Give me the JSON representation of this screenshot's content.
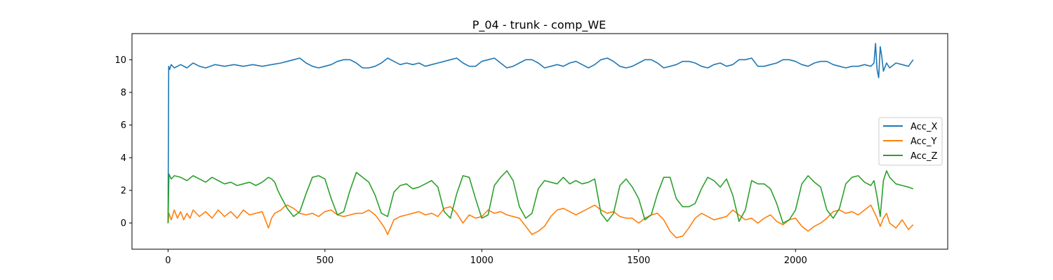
{
  "chart_data": {
    "type": "line",
    "title": "P_04 - trunk - comp_WE",
    "xlabel": "",
    "ylabel": "",
    "xlim": [
      -115,
      2485
    ],
    "ylim": [
      -1.6,
      11.6
    ],
    "x_ticks": [
      0,
      500,
      1000,
      1500,
      2000
    ],
    "y_ticks": [
      0,
      2,
      4,
      6,
      8,
      10
    ],
    "grid": false,
    "legend_position": "center-right",
    "series": [
      {
        "name": "Acc_X",
        "color": "#1f77b4",
        "x": [
          0,
          2,
          5,
          10,
          20,
          40,
          60,
          80,
          100,
          120,
          150,
          180,
          210,
          240,
          270,
          300,
          330,
          360,
          380,
          400,
          420,
          440,
          460,
          480,
          500,
          520,
          540,
          560,
          580,
          600,
          620,
          640,
          660,
          680,
          700,
          720,
          740,
          760,
          780,
          800,
          820,
          840,
          860,
          880,
          900,
          920,
          940,
          960,
          980,
          1000,
          1020,
          1040,
          1060,
          1080,
          1100,
          1120,
          1140,
          1160,
          1180,
          1200,
          1220,
          1240,
          1260,
          1280,
          1300,
          1320,
          1340,
          1360,
          1380,
          1400,
          1420,
          1440,
          1460,
          1480,
          1500,
          1520,
          1540,
          1560,
          1580,
          1600,
          1620,
          1640,
          1660,
          1680,
          1700,
          1720,
          1740,
          1760,
          1780,
          1800,
          1820,
          1840,
          1860,
          1880,
          1900,
          1920,
          1940,
          1960,
          1980,
          2000,
          2020,
          2040,
          2060,
          2080,
          2100,
          2120,
          2140,
          2160,
          2180,
          2200,
          2220,
          2240,
          2250,
          2255,
          2260,
          2265,
          2270,
          2275,
          2280,
          2290,
          2300,
          2320,
          2340,
          2360,
          2375
        ],
        "values": [
          0.0,
          9.6,
          9.4,
          9.7,
          9.5,
          9.7,
          9.5,
          9.8,
          9.6,
          9.5,
          9.7,
          9.6,
          9.7,
          9.6,
          9.7,
          9.6,
          9.7,
          9.8,
          9.9,
          10.0,
          10.1,
          9.8,
          9.6,
          9.5,
          9.6,
          9.7,
          9.9,
          10.0,
          10.0,
          9.8,
          9.5,
          9.5,
          9.6,
          9.8,
          10.1,
          9.9,
          9.7,
          9.8,
          9.7,
          9.8,
          9.6,
          9.7,
          9.8,
          9.9,
          10.0,
          10.1,
          9.8,
          9.6,
          9.6,
          9.9,
          10.0,
          10.1,
          9.8,
          9.5,
          9.6,
          9.8,
          10.0,
          10.0,
          9.8,
          9.5,
          9.6,
          9.7,
          9.6,
          9.8,
          9.9,
          9.7,
          9.5,
          9.7,
          10.0,
          10.1,
          9.9,
          9.6,
          9.5,
          9.6,
          9.8,
          10.0,
          10.0,
          9.8,
          9.5,
          9.6,
          9.7,
          9.9,
          9.9,
          9.8,
          9.6,
          9.5,
          9.7,
          9.8,
          9.6,
          9.7,
          10.0,
          10.0,
          10.1,
          9.6,
          9.6,
          9.7,
          9.8,
          10.0,
          10.0,
          9.9,
          9.7,
          9.6,
          9.8,
          9.9,
          9.9,
          9.7,
          9.6,
          9.5,
          9.6,
          9.6,
          9.7,
          9.6,
          9.8,
          11.0,
          9.4,
          8.9,
          10.8,
          10.2,
          9.3,
          9.8,
          9.5,
          9.8,
          9.7,
          9.6,
          10.0
        ]
      },
      {
        "name": "Acc_Y",
        "color": "#ff7f0e",
        "x": [
          0,
          3,
          10,
          20,
          30,
          40,
          50,
          60,
          70,
          80,
          100,
          120,
          140,
          160,
          180,
          200,
          220,
          240,
          260,
          280,
          300,
          310,
          320,
          330,
          340,
          360,
          370,
          380,
          400,
          420,
          440,
          460,
          480,
          500,
          520,
          540,
          560,
          580,
          600,
          620,
          640,
          660,
          680,
          690,
          700,
          720,
          740,
          760,
          780,
          800,
          820,
          840,
          860,
          880,
          900,
          920,
          940,
          960,
          980,
          1000,
          1020,
          1040,
          1060,
          1080,
          1100,
          1120,
          1140,
          1160,
          1180,
          1200,
          1220,
          1240,
          1260,
          1280,
          1300,
          1320,
          1340,
          1360,
          1380,
          1400,
          1420,
          1440,
          1460,
          1480,
          1500,
          1520,
          1540,
          1560,
          1580,
          1600,
          1620,
          1640,
          1660,
          1680,
          1700,
          1720,
          1740,
          1760,
          1780,
          1800,
          1820,
          1840,
          1860,
          1880,
          1900,
          1920,
          1940,
          1960,
          1980,
          2000,
          2020,
          2040,
          2060,
          2080,
          2100,
          2120,
          2140,
          2160,
          2180,
          2200,
          2220,
          2240,
          2255,
          2260,
          2270,
          2280,
          2290,
          2300,
          2320,
          2340,
          2360,
          2375
        ],
        "values": [
          0.0,
          0.6,
          0.2,
          0.8,
          0.3,
          0.7,
          0.2,
          0.6,
          0.3,
          0.8,
          0.4,
          0.7,
          0.3,
          0.8,
          0.4,
          0.7,
          0.3,
          0.8,
          0.5,
          0.6,
          0.7,
          0.2,
          -0.3,
          0.3,
          0.6,
          0.8,
          1.0,
          1.1,
          0.9,
          0.6,
          0.5,
          0.6,
          0.4,
          0.7,
          0.8,
          0.5,
          0.4,
          0.5,
          0.6,
          0.6,
          0.8,
          0.5,
          0.0,
          -0.3,
          -0.7,
          0.2,
          0.4,
          0.5,
          0.6,
          0.7,
          0.5,
          0.6,
          0.4,
          0.9,
          1.0,
          0.6,
          0.0,
          0.5,
          0.3,
          0.4,
          0.8,
          0.6,
          0.7,
          0.5,
          0.4,
          0.3,
          -0.2,
          -0.7,
          -0.5,
          -0.2,
          0.4,
          0.8,
          0.9,
          0.7,
          0.5,
          0.7,
          0.9,
          1.1,
          0.8,
          0.6,
          0.7,
          0.4,
          0.3,
          0.3,
          0.0,
          0.3,
          0.5,
          0.6,
          0.2,
          -0.5,
          -0.9,
          -0.8,
          -0.3,
          0.3,
          0.6,
          0.4,
          0.2,
          0.3,
          0.4,
          0.8,
          0.5,
          0.2,
          0.3,
          0.0,
          0.3,
          0.5,
          0.1,
          -0.1,
          0.2,
          0.3,
          -0.2,
          -0.5,
          -0.2,
          0.0,
          0.3,
          0.7,
          0.8,
          0.6,
          0.7,
          0.5,
          0.8,
          1.1,
          0.5,
          0.3,
          -0.2,
          0.3,
          0.6,
          0.0,
          -0.3,
          0.2,
          -0.4,
          -0.1
        ]
      },
      {
        "name": "Acc_Z",
        "color": "#2ca02c",
        "x": [
          0,
          3,
          10,
          20,
          40,
          60,
          80,
          100,
          120,
          140,
          160,
          180,
          200,
          220,
          240,
          260,
          280,
          300,
          320,
          330,
          340,
          350,
          360,
          380,
          400,
          420,
          440,
          460,
          480,
          500,
          520,
          540,
          560,
          580,
          600,
          620,
          640,
          660,
          680,
          700,
          720,
          740,
          760,
          780,
          800,
          820,
          840,
          860,
          880,
          900,
          920,
          940,
          960,
          980,
          1000,
          1020,
          1040,
          1060,
          1080,
          1100,
          1120,
          1140,
          1160,
          1180,
          1200,
          1220,
          1240,
          1260,
          1280,
          1300,
          1320,
          1340,
          1360,
          1380,
          1400,
          1420,
          1440,
          1460,
          1480,
          1500,
          1520,
          1540,
          1560,
          1580,
          1600,
          1620,
          1640,
          1660,
          1680,
          1700,
          1720,
          1740,
          1760,
          1780,
          1800,
          1820,
          1840,
          1860,
          1880,
          1900,
          1920,
          1940,
          1960,
          1980,
          2000,
          2020,
          2040,
          2060,
          2080,
          2100,
          2120,
          2140,
          2160,
          2180,
          2200,
          2220,
          2240,
          2250,
          2260,
          2270,
          2280,
          2290,
          2300,
          2320,
          2340,
          2360,
          2375
        ],
        "values": [
          0.0,
          3.0,
          2.7,
          2.9,
          2.8,
          2.6,
          2.9,
          2.7,
          2.5,
          2.8,
          2.6,
          2.4,
          2.5,
          2.3,
          2.4,
          2.5,
          2.3,
          2.5,
          2.8,
          2.7,
          2.5,
          2.0,
          1.6,
          0.9,
          0.4,
          0.7,
          1.8,
          2.8,
          2.9,
          2.7,
          1.5,
          0.5,
          0.7,
          2.0,
          3.1,
          2.8,
          2.5,
          1.7,
          0.6,
          0.4,
          1.9,
          2.3,
          2.4,
          2.1,
          2.2,
          2.4,
          2.6,
          2.2,
          0.7,
          0.3,
          1.8,
          2.9,
          2.8,
          1.5,
          0.3,
          0.5,
          2.3,
          2.8,
          3.2,
          2.6,
          1.0,
          0.3,
          0.6,
          2.1,
          2.6,
          2.5,
          2.4,
          2.8,
          2.4,
          2.6,
          2.4,
          2.5,
          2.7,
          0.6,
          0.1,
          0.6,
          2.3,
          2.7,
          2.2,
          1.5,
          0.2,
          0.5,
          1.8,
          2.8,
          2.8,
          1.5,
          1.0,
          1.0,
          1.2,
          2.1,
          2.8,
          2.6,
          2.2,
          2.7,
          1.7,
          0.1,
          0.8,
          2.6,
          2.4,
          2.4,
          2.1,
          1.2,
          0.0,
          0.2,
          0.8,
          2.4,
          2.9,
          2.5,
          2.2,
          0.8,
          0.3,
          0.9,
          2.4,
          2.8,
          2.9,
          2.5,
          2.3,
          2.6,
          1.6,
          0.4,
          2.6,
          3.2,
          2.8,
          2.4,
          2.3,
          2.2,
          2.1
        ]
      }
    ]
  }
}
